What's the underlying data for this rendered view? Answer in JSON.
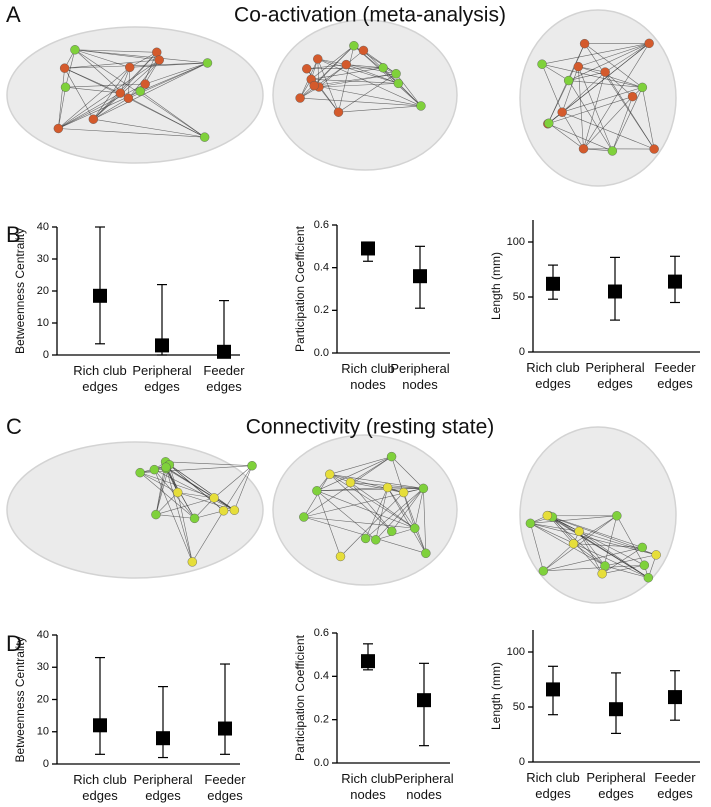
{
  "figure": {
    "a": {
      "letter": "A",
      "title": "Co-activation (meta-analysis)"
    },
    "b": {
      "letter": "B"
    },
    "c": {
      "letter": "C",
      "title": "Connectivity (resting state)"
    },
    "d": {
      "letter": "D"
    }
  },
  "chart_data": [
    {
      "type": "errorbar",
      "y_label": "Betweenness Centrality",
      "categories": [
        "Rich club\nedges",
        "Peripheral\nedges",
        "Feeder\nedges"
      ],
      "values": [
        18.5,
        3,
        1
      ],
      "lower": [
        3.5,
        0,
        0
      ],
      "upper": [
        40,
        22,
        17
      ],
      "ylim": [
        0,
        40
      ],
      "yticks": [
        0,
        10,
        20,
        30,
        40
      ]
    },
    {
      "type": "errorbar",
      "y_label": "Participation Coefficient",
      "categories": [
        "Rich club\nnodes",
        "Peripheral\nnodes"
      ],
      "values": [
        0.49,
        0.36
      ],
      "lower": [
        0.43,
        0.21
      ],
      "upper": [
        0.52,
        0.5
      ],
      "ylim": [
        0,
        0.6
      ],
      "yticks": [
        {
          "value": 0,
          "label": "0.0"
        },
        0.2,
        0.4,
        0.6
      ]
    },
    {
      "type": "errorbar",
      "y_label": "Length (mm)",
      "categories": [
        "Rich club\nedges",
        "Peripheral\nedges",
        "Feeder\nedges"
      ],
      "values": [
        62,
        55,
        64
      ],
      "lower": [
        48,
        29,
        45
      ],
      "upper": [
        79,
        86,
        87
      ],
      "ylim": [
        0,
        120
      ],
      "yticks": [
        0,
        50,
        100
      ]
    },
    {
      "type": "errorbar",
      "y_label": "Betweenness Centrality",
      "categories": [
        "Rich club\nedges",
        "Peripheral\nedges",
        "Feeder\nedges"
      ],
      "values": [
        12,
        8,
        11
      ],
      "lower": [
        3,
        2,
        3
      ],
      "upper": [
        33,
        24,
        31
      ],
      "ylim": [
        0,
        40
      ],
      "yticks": [
        0,
        10,
        20,
        30,
        40
      ]
    },
    {
      "type": "errorbar",
      "y_label": "Participation Coefficient",
      "categories": [
        "Rich club\nnodes",
        "Peripheral\nnodes"
      ],
      "values": [
        0.47,
        0.29
      ],
      "lower": [
        0.43,
        0.08
      ],
      "upper": [
        0.55,
        0.46
      ],
      "ylim": [
        0,
        0.6
      ],
      "yticks": [
        {
          "value": 0,
          "label": "0.0"
        },
        0.2,
        0.4,
        0.6
      ]
    },
    {
      "type": "errorbar",
      "y_label": "Length (mm)",
      "categories": [
        "Rich club\nedges",
        "Peripheral\nedges",
        "Feeder\nedges"
      ],
      "values": [
        66,
        48,
        59
      ],
      "lower": [
        43,
        26,
        38
      ],
      "upper": [
        87,
        81,
        83
      ],
      "ylim": [
        0,
        120
      ],
      "yticks": [
        0,
        50,
        100
      ]
    }
  ]
}
